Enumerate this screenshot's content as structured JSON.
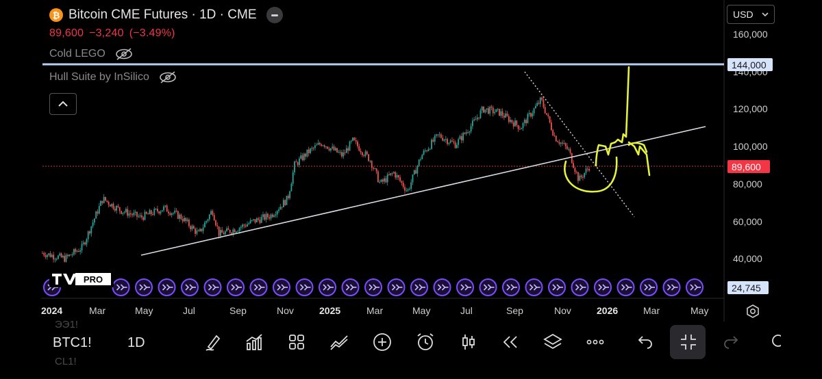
{
  "header": {
    "icon": "bitcoin-icon",
    "title": "Bitcoin CME Futures · 1D · CME",
    "price": "89,600",
    "change": "−3,240",
    "change_pct": "(−3.49%)"
  },
  "indicators": [
    {
      "label": "Cold LEGO",
      "icon": "eye-off-icon"
    },
    {
      "label": "Hull Suite by InSilico",
      "icon": "eye-off-icon"
    }
  ],
  "currency": "USD",
  "price_axis": {
    "labels": [
      "160,000",
      "140,000",
      "120,000",
      "100,000",
      "80,000",
      "60,000",
      "40,000"
    ],
    "tags": {
      "resistance": "144,000",
      "last": "89,600",
      "volume": "24,745"
    }
  },
  "time_axis": [
    "2024",
    "Mar",
    "May",
    "Jul",
    "Sep",
    "Nov",
    "2025",
    "Mar",
    "May",
    "Jul",
    "Sep",
    "Nov",
    "2026",
    "Mar",
    "May"
  ],
  "toolbar": {
    "symbol": "BTC1!",
    "timeframe": "1D",
    "ghost_top": "ЭЭ1!",
    "ghost_bottom": "CL1!"
  },
  "logo": {
    "pro": "PRO"
  },
  "colors": {
    "up": "#26a69a",
    "down": "#ef5350",
    "accent_yellow": "#e6f23a",
    "resistance": "#b7d0f5",
    "last_price": "#f23645",
    "event_circle": "#7b4cff"
  }
}
